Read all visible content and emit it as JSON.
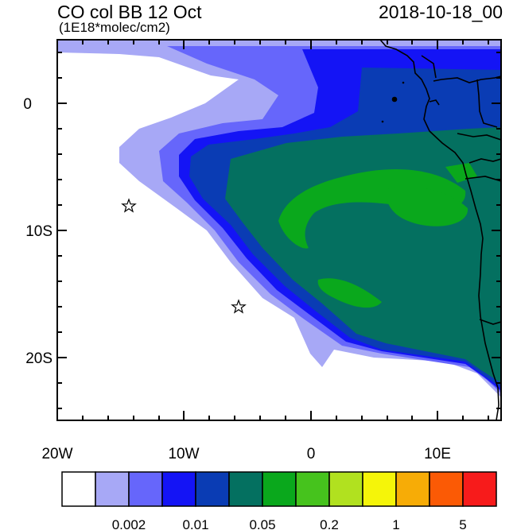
{
  "title": "CO col BB 12 Oct",
  "subtitle": "(1E18*molec/cm2)",
  "datetime": "2018-10-18_00",
  "map": {
    "lon_range": [
      -20,
      15
    ],
    "lat_range": [
      -25,
      5
    ],
    "x_tick_labels": [
      "20W",
      "10W",
      "0",
      "10E"
    ],
    "y_tick_labels": [
      "0",
      "10S",
      "20S"
    ],
    "markers": [
      {
        "name": "star",
        "lon": -14.3,
        "lat": -8.0
      },
      {
        "name": "star",
        "lon": -5.8,
        "lat": -16.0
      }
    ]
  },
  "colorbar": {
    "colors": [
      "#ffffff",
      "#a7a8f6",
      "#6666fb",
      "#1414f5",
      "#0a3cb4",
      "#047060",
      "#0aa81c",
      "#46c31d",
      "#b1e11f",
      "#f5f509",
      "#f7ac06",
      "#fb5a05",
      "#f71b1b"
    ],
    "tick_labels": [
      "0.002",
      "0.01",
      "0.05",
      "0.2",
      "1",
      "5"
    ]
  }
}
